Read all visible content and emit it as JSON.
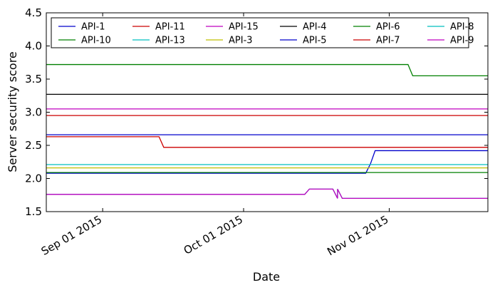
{
  "chart_data": {
    "type": "line",
    "title": "",
    "xlabel": "Date",
    "ylabel": "Server security score",
    "xlim": [
      "2015-08-20",
      "2015-11-22"
    ],
    "ylim": [
      1.5,
      4.5
    ],
    "yticks": [
      1.5,
      2.0,
      2.5,
      3.0,
      3.5,
      4.0,
      4.5
    ],
    "ytick_labels": [
      "1.5",
      "2.0",
      "2.5",
      "3.0",
      "3.5",
      "4.0",
      "4.5"
    ],
    "xticks": [
      "2015-09-01",
      "2015-10-01",
      "2015-11-01"
    ],
    "xtick_labels": [
      "Sep 01 2015",
      "Oct 01 2015",
      "Nov 01 2015"
    ],
    "grid": false,
    "legend_position": "top",
    "series": [
      {
        "name": "API-1",
        "color": "#0000cc",
        "points": [
          [
            "2015-08-20",
            2.08
          ],
          [
            "2015-10-27",
            2.08
          ],
          [
            "2015-10-28",
            2.22
          ],
          [
            "2015-10-29",
            2.42
          ],
          [
            "2015-11-22",
            2.42
          ]
        ]
      },
      {
        "name": "API-10",
        "color": "#008000",
        "points": [
          [
            "2015-08-20",
            3.72
          ],
          [
            "2015-11-05",
            3.72
          ],
          [
            "2015-11-06",
            3.55
          ],
          [
            "2015-11-22",
            3.55
          ]
        ]
      },
      {
        "name": "API-11",
        "color": "#cc0000",
        "points": [
          [
            "2015-08-20",
            2.63
          ],
          [
            "2015-09-13",
            2.63
          ],
          [
            "2015-09-14",
            2.47
          ],
          [
            "2015-11-22",
            2.47
          ]
        ]
      },
      {
        "name": "API-13",
        "color": "#00bfbf",
        "points": [
          [
            "2015-08-20",
            1.76
          ],
          [
            "2015-10-14",
            1.76
          ],
          [
            "2015-10-15",
            1.84
          ],
          [
            "2015-10-20",
            1.84
          ],
          [
            "2015-10-21",
            1.7
          ],
          [
            "2015-10-21",
            1.84
          ],
          [
            "2015-10-22",
            1.7
          ],
          [
            "2015-11-22",
            1.7
          ]
        ]
      },
      {
        "name": "API-15",
        "color": "#bf00bf",
        "points": [
          [
            "2015-08-20",
            3.05
          ],
          [
            "2015-11-22",
            3.05
          ]
        ]
      },
      {
        "name": "API-3",
        "color": "#bfbf00",
        "points": [
          [
            "2015-08-20",
            2.16
          ],
          [
            "2015-11-22",
            2.16
          ]
        ]
      },
      {
        "name": "API-4",
        "color": "#000000",
        "points": [
          [
            "2015-08-20",
            3.27
          ],
          [
            "2015-11-22",
            3.27
          ]
        ]
      },
      {
        "name": "API-5",
        "color": "#0000cc",
        "points": [
          [
            "2015-08-20",
            2.66
          ],
          [
            "2015-11-22",
            2.66
          ]
        ]
      },
      {
        "name": "API-6",
        "color": "#008000",
        "points": [
          [
            "2015-08-20",
            2.09
          ],
          [
            "2015-11-22",
            2.09
          ]
        ]
      },
      {
        "name": "API-7",
        "color": "#cc0000",
        "points": [
          [
            "2015-08-20",
            2.95
          ],
          [
            "2015-11-22",
            2.95
          ]
        ]
      },
      {
        "name": "API-8",
        "color": "#00bfbf",
        "points": [
          [
            "2015-08-20",
            2.21
          ],
          [
            "2015-11-22",
            2.21
          ]
        ]
      },
      {
        "name": "API-9",
        "color": "#bf00bf",
        "points": [
          [
            "2015-08-20",
            1.76
          ],
          [
            "2015-10-14",
            1.76
          ],
          [
            "2015-10-15",
            1.84
          ],
          [
            "2015-10-20",
            1.84
          ],
          [
            "2015-10-21",
            1.7
          ],
          [
            "2015-10-21",
            1.84
          ],
          [
            "2015-10-22",
            1.7
          ],
          [
            "2015-11-22",
            1.7
          ]
        ]
      }
    ]
  }
}
